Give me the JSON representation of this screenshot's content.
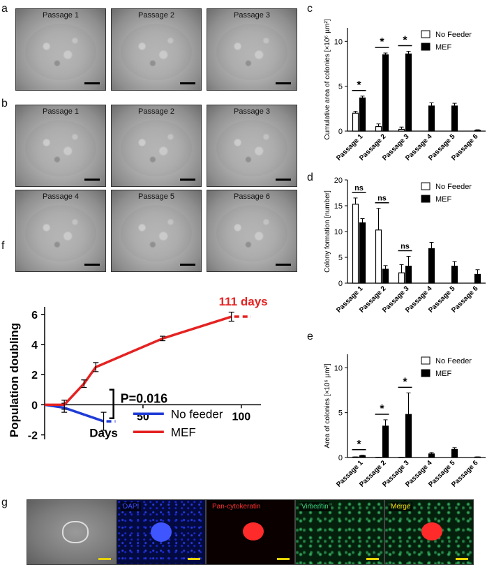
{
  "panels": {
    "a": "a",
    "b": "b",
    "c": "c",
    "d": "d",
    "e": "e",
    "f": "f",
    "g": "g"
  },
  "panel_a_images": [
    "Passage 1",
    "Passage 2",
    "Passage 3"
  ],
  "panel_b_images": [
    "Passage 1",
    "Passage 2",
    "Passage 3",
    "Passage 4",
    "Passage 5",
    "Passage 6"
  ],
  "panel_g_images": [
    "",
    "DAPI",
    "Pan-cytokeratin",
    "Vimentin",
    "Merge"
  ],
  "colors": {
    "no_feeder_line": "#1f3bd6",
    "mef_line": "#e52222",
    "red_label": "#e52222",
    "dapi": "#3b4bff",
    "pan": "#ff3030",
    "vim": "#38d17a",
    "merge": "#f5e000",
    "scalebar": "#e6d200"
  },
  "chart_data": [
    {
      "id": "c",
      "type": "bar",
      "ylabel": "Cumulative area of colonies [×10⁶ µm²]",
      "categories": [
        "Passage 1",
        "Passage 2",
        "Passage 3",
        "Passage 4",
        "Passage 5",
        "Passage 6"
      ],
      "yticks": [
        0,
        5,
        10
      ],
      "ylim": [
        0,
        11.5
      ],
      "series": [
        {
          "name": "No Feeder",
          "values": [
            2.0,
            0.5,
            0.2,
            0,
            0,
            0
          ],
          "errors": [
            0.2,
            0.3,
            0.25,
            0,
            0,
            0
          ]
        },
        {
          "name": "MEF",
          "values": [
            3.7,
            8.5,
            8.6,
            2.8,
            2.8,
            0.1
          ],
          "errors": [
            0.2,
            0.2,
            0.3,
            0.35,
            0.3,
            0.05
          ]
        }
      ],
      "significance": [
        {
          "label": "*",
          "pair": 0
        },
        {
          "label": "*",
          "pair": 1
        },
        {
          "label": "*",
          "pair": 2
        }
      ]
    },
    {
      "id": "d",
      "type": "bar",
      "ylabel": "Colony formation [number]",
      "categories": [
        "Passage 1",
        "Passage 2",
        "Passage 3",
        "Passage 4",
        "Passage 5",
        "Passage 6"
      ],
      "yticks": [
        0,
        5,
        10,
        15,
        20
      ],
      "ylim": [
        0,
        20
      ],
      "series": [
        {
          "name": "No Feeder",
          "values": [
            15.3,
            10.3,
            2.0,
            0,
            0,
            0
          ],
          "errors": [
            1.2,
            4.2,
            1.6,
            0,
            0,
            0
          ]
        },
        {
          "name": "MEF",
          "values": [
            11.7,
            2.7,
            3.3,
            6.7,
            3.3,
            1.7
          ],
          "errors": [
            0.8,
            0.7,
            1.9,
            1.2,
            0.9,
            0.9
          ]
        }
      ],
      "significance": [
        {
          "label": "ns",
          "pair": 0
        },
        {
          "label": "ns",
          "pair": 1
        },
        {
          "label": "ns",
          "pair": 2
        }
      ]
    },
    {
      "id": "e",
      "type": "bar",
      "ylabel": "Area of colonies [×10⁶ µm²]",
      "categories": [
        "Passage 1",
        "Passage 2",
        "Passage 3",
        "Passage 4",
        "Passage 5",
        "Passage 6"
      ],
      "yticks": [
        0,
        5,
        10
      ],
      "ylim": [
        0,
        11.5
      ],
      "series": [
        {
          "name": "No Feeder",
          "values": [
            0.05,
            0.02,
            0.02,
            0,
            0,
            0
          ],
          "errors": [
            0.02,
            0.01,
            0.01,
            0,
            0,
            0
          ]
        },
        {
          "name": "MEF",
          "values": [
            0.2,
            3.5,
            4.8,
            0.4,
            0.9,
            0.05
          ],
          "errors": [
            0.05,
            0.7,
            2.4,
            0.15,
            0.2,
            0.02
          ]
        }
      ],
      "significance": [
        {
          "label": "*",
          "pair": 0
        },
        {
          "label": "*",
          "pair": 1
        },
        {
          "label": "*",
          "pair": 2
        }
      ]
    },
    {
      "id": "f",
      "type": "line",
      "xlabel": "Days",
      "ylabel": "Population doubling",
      "xticks": [
        50,
        100
      ],
      "yticks": [
        -2,
        0,
        2,
        4,
        6
      ],
      "xlim": [
        0,
        110
      ],
      "ylim": [
        -2.3,
        6.5
      ],
      "series": [
        {
          "name": "No feeder",
          "x": [
            0,
            10,
            30
          ],
          "y": [
            0,
            -0.2,
            -1.1
          ],
          "err": [
            0,
            0.3,
            0.6
          ],
          "dash_to": 36
        },
        {
          "name": "MEF",
          "x": [
            0,
            10,
            20,
            26,
            60,
            95
          ],
          "y": [
            0,
            0,
            1.4,
            2.5,
            4.4,
            5.85
          ],
          "err": [
            0,
            0.3,
            0.25,
            0.3,
            0.15,
            0.3
          ],
          "dash_to": 105
        }
      ],
      "annotation": "P=0.016",
      "end_label": "111 days"
    }
  ]
}
